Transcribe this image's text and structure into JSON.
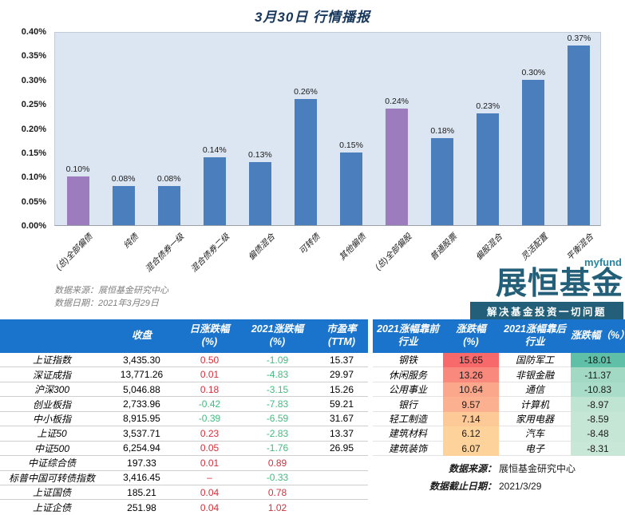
{
  "title": "3月30日 行情播报",
  "colors": {
    "up": "#D2313C",
    "down": "#3EBD7D",
    "header_bg": "#1B74CC",
    "bar_blue": "#4A7EBD",
    "bar_purple": "#9C7CBD",
    "plot_bg": "#DCE6F2",
    "logo": "#235F79"
  },
  "chart_data": {
    "type": "bar",
    "title": "3月30日 行情播报",
    "categories": [
      "(总)全部偏债",
      "纯债",
      "混合债券一级",
      "混合债券二级",
      "偏债混合",
      "可转债",
      "其他偏债",
      "(总)全部偏股",
      "普通股票",
      "偏股混合",
      "灵活配置",
      "平衡混合"
    ],
    "values": [
      0.1,
      0.08,
      0.08,
      0.14,
      0.13,
      0.26,
      0.15,
      0.24,
      0.18,
      0.23,
      0.3,
      0.37
    ],
    "labels": [
      "0.10%",
      "0.08%",
      "0.08%",
      "0.14%",
      "0.13%",
      "0.26%",
      "0.15%",
      "0.24%",
      "0.18%",
      "0.23%",
      "0.30%",
      "0.37%"
    ],
    "bar_colors": [
      "#9C7CBD",
      "#4A7EBD",
      "#4A7EBD",
      "#4A7EBD",
      "#4A7EBD",
      "#4A7EBD",
      "#4A7EBD",
      "#9C7CBD",
      "#4A7EBD",
      "#4A7EBD",
      "#4A7EBD",
      "#4A7EBD"
    ],
    "y_ticks": [
      "0.40%",
      "0.35%",
      "0.30%",
      "0.25%",
      "0.20%",
      "0.15%",
      "0.10%",
      "0.05%",
      "0.00%"
    ],
    "ylim": [
      0,
      0.4
    ],
    "grid": false,
    "legend": "none",
    "source_line1": "数据来源：展恒基金研究中心",
    "source_line2": "数据日期：2021年3月29日"
  },
  "logo": {
    "brand_small": "myfund",
    "brand_main": "展恒基金",
    "tagline": "解决基金投资一切问题"
  },
  "index_table": {
    "headers": [
      {
        "l1": "",
        "l2": ""
      },
      {
        "l1": "收盘",
        "l2": ""
      },
      {
        "l1": "日涨跌幅",
        "l2": "(%)"
      },
      {
        "l1": "2021涨跌幅",
        "l2": "(%)"
      },
      {
        "l1": "市盈率",
        "l2": "(TTM)"
      }
    ],
    "rows": [
      {
        "name": "上证指数",
        "close": "3,435.30",
        "daily": "0.50",
        "daily_dir": "up",
        "ytd": "-1.09",
        "ytd_dir": "down",
        "pe": "15.37"
      },
      {
        "name": "深证成指",
        "close": "13,771.26",
        "daily": "0.01",
        "daily_dir": "up",
        "ytd": "-4.83",
        "ytd_dir": "down",
        "pe": "29.97"
      },
      {
        "name": "沪深300",
        "close": "5,046.88",
        "daily": "0.18",
        "daily_dir": "up",
        "ytd": "-3.15",
        "ytd_dir": "down",
        "pe": "15.26"
      },
      {
        "name": "创业板指",
        "close": "2,733.96",
        "daily": "-0.42",
        "daily_dir": "down",
        "ytd": "-7.83",
        "ytd_dir": "down",
        "pe": "59.21"
      },
      {
        "name": "中小板指",
        "close": "8,915.95",
        "daily": "-0.39",
        "daily_dir": "down",
        "ytd": "-6.59",
        "ytd_dir": "down",
        "pe": "31.67"
      },
      {
        "name": "上证50",
        "close": "3,537.71",
        "daily": "0.23",
        "daily_dir": "up",
        "ytd": "-2.83",
        "ytd_dir": "down",
        "pe": "13.37"
      },
      {
        "name": "中证500",
        "close": "6,254.94",
        "daily": "0.05",
        "daily_dir": "up",
        "ytd": "-1.76",
        "ytd_dir": "down",
        "pe": "26.95"
      },
      {
        "name": "中证综合债",
        "close": "197.33",
        "daily": "0.01",
        "daily_dir": "up",
        "ytd": "0.89",
        "ytd_dir": "up",
        "pe": ""
      },
      {
        "name": "标普中国可转债指数",
        "close": "3,416.45",
        "daily": "–",
        "daily_dir": "up",
        "ytd": "-0.33",
        "ytd_dir": "down",
        "pe": ""
      },
      {
        "name": "上证国债",
        "close": "185.21",
        "daily": "0.04",
        "daily_dir": "up",
        "ytd": "0.78",
        "ytd_dir": "up",
        "pe": ""
      },
      {
        "name": "上证企债",
        "close": "251.98",
        "daily": "0.04",
        "daily_dir": "up",
        "ytd": "1.02",
        "ytd_dir": "up",
        "pe": ""
      }
    ]
  },
  "industry_table": {
    "headers": [
      {
        "l1": "2021涨幅靠前",
        "l2": "行业"
      },
      {
        "l1": "涨跌幅",
        "l2": "(%)"
      },
      {
        "l1": "2021涨幅靠后",
        "l2": "行业"
      },
      {
        "l1": "涨跌幅（%）",
        "l2": ""
      }
    ],
    "rows": [
      {
        "gainer": "钢铁",
        "gain": "15.65",
        "gain_bg": "#F8696B",
        "loser": "国防军工",
        "loss": "-18.01",
        "loss_bg": "#5FBFA7"
      },
      {
        "gainer": "休闲服务",
        "gain": "13.26",
        "gain_bg": "#F9897D",
        "loser": "非银金融",
        "loss": "-11.37",
        "loss_bg": "#A2D9C5"
      },
      {
        "gainer": "公用事业",
        "gain": "10.64",
        "gain_bg": "#FAA78C",
        "loser": "通信",
        "loss": "-10.83",
        "loss_bg": "#A9DCC9"
      },
      {
        "gainer": "银行",
        "gain": "9.57",
        "gain_bg": "#FBB08F",
        "loser": "计算机",
        "loss": "-8.97",
        "loss_bg": "#C0E4D2"
      },
      {
        "gainer": "轻工制造",
        "gain": "7.14",
        "gain_bg": "#FCC997",
        "loser": "家用电器",
        "loss": "-8.59",
        "loss_bg": "#C5E6D5"
      },
      {
        "gainer": "建筑材料",
        "gain": "6.12",
        "gain_bg": "#FDD29B",
        "loser": "汽车",
        "loss": "-8.48",
        "loss_bg": "#C6E6D5"
      },
      {
        "gainer": "建筑装饰",
        "gain": "6.07",
        "gain_bg": "#FDD39B",
        "loser": "电子",
        "loss": "-8.31",
        "loss_bg": "#C8E7D7"
      }
    ],
    "source": [
      {
        "label": "数据来源：",
        "value": "展恒基金研究中心"
      },
      {
        "label": "数据截止日期：",
        "value": "2021/3/29"
      }
    ]
  }
}
